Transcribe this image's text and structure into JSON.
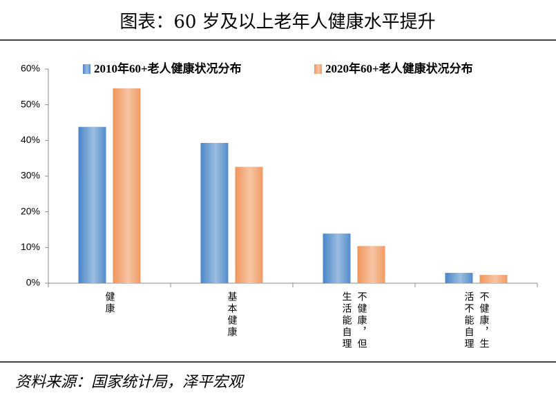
{
  "title": "图表：60 岁及以上老年人健康水平提升",
  "source": "资料来源：国家统计局，泽平宏观",
  "chart_data": {
    "type": "bar",
    "categories": [
      "健康",
      "基本健康",
      "不健康，但生活能自理",
      "不健康，生活不能自理"
    ],
    "series": [
      {
        "name": "2010年60+老人健康状况分布",
        "color": "#4a86c8",
        "values": [
          43.8,
          39.3,
          13.9,
          2.9
        ]
      },
      {
        "name": "2020年60+老人健康状况分布",
        "color": "#f0955a",
        "values": [
          54.6,
          32.6,
          10.4,
          2.3
        ]
      }
    ],
    "ylim": [
      0,
      60
    ],
    "yticks": [
      {
        "value": 0,
        "label": "0%"
      },
      {
        "value": 10,
        "label": "10%"
      },
      {
        "value": 20,
        "label": "20%"
      },
      {
        "value": 30,
        "label": "30%"
      },
      {
        "value": 40,
        "label": "40%"
      },
      {
        "value": 50,
        "label": "50%"
      },
      {
        "value": 60,
        "label": "60%"
      }
    ],
    "legend": "top"
  }
}
